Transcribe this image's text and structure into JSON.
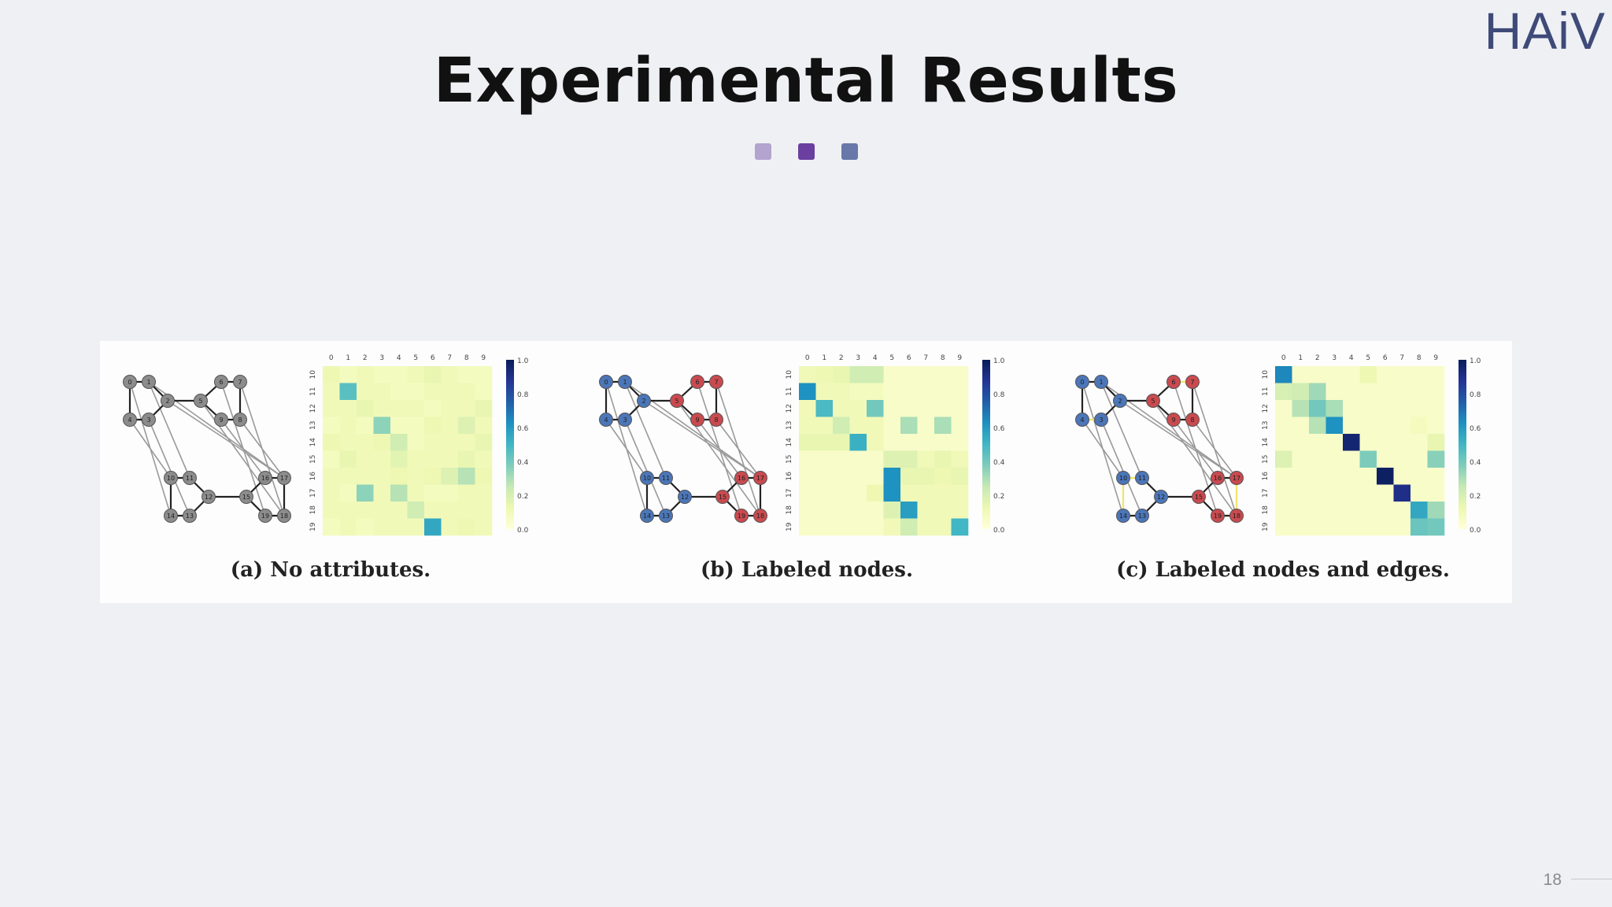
{
  "slide": {
    "logo": "HAiV",
    "title": "Experimental Results",
    "page_number": "18",
    "accent_dots": [
      "#b3a3cf",
      "#6b3fa0",
      "#6878a8"
    ]
  },
  "figure": {
    "panels": [
      {
        "caption": "(a) No attributes.",
        "heatmap": {
          "x_ticks": [
            "0",
            "1",
            "2",
            "3",
            "4",
            "5",
            "6",
            "7",
            "8",
            "9"
          ],
          "y_ticks": [
            "10",
            "11",
            "12",
            "13",
            "14",
            "15",
            "16",
            "17",
            "18",
            "19"
          ],
          "colorbar_ticks": [
            "1.0",
            "0.8",
            "0.6",
            "0.4",
            "0.2",
            "0.0"
          ],
          "values": [
            [
              0.12,
              0.08,
              0.1,
              0.08,
              0.08,
              0.1,
              0.14,
              0.1,
              0.08,
              0.08
            ],
            [
              0.1,
              0.45,
              0.1,
              0.1,
              0.08,
              0.08,
              0.1,
              0.1,
              0.1,
              0.08
            ],
            [
              0.1,
              0.1,
              0.14,
              0.1,
              0.1,
              0.1,
              0.08,
              0.1,
              0.1,
              0.14
            ],
            [
              0.08,
              0.1,
              0.08,
              0.35,
              0.08,
              0.08,
              0.12,
              0.1,
              0.18,
              0.1
            ],
            [
              0.12,
              0.1,
              0.1,
              0.12,
              0.22,
              0.08,
              0.1,
              0.1,
              0.1,
              0.14
            ],
            [
              0.08,
              0.14,
              0.1,
              0.1,
              0.16,
              0.1,
              0.1,
              0.1,
              0.14,
              0.1
            ],
            [
              0.1,
              0.1,
              0.1,
              0.1,
              0.12,
              0.1,
              0.12,
              0.18,
              0.28,
              0.12
            ],
            [
              0.1,
              0.08,
              0.35,
              0.1,
              0.28,
              0.1,
              0.08,
              0.08,
              0.1,
              0.1
            ],
            [
              0.1,
              0.1,
              0.1,
              0.1,
              0.1,
              0.22,
              0.1,
              0.1,
              0.1,
              0.1
            ],
            [
              0.08,
              0.1,
              0.08,
              0.1,
              0.1,
              0.1,
              0.55,
              0.1,
              0.12,
              0.1
            ]
          ]
        },
        "graph": {
          "scheme": "gray",
          "node_labels": [
            "0",
            "1",
            "2",
            "3",
            "4",
            "5",
            "6",
            "7",
            "8",
            "9",
            "10",
            "11",
            "12",
            "13",
            "14",
            "15",
            "16",
            "17",
            "18",
            "19"
          ]
        }
      },
      {
        "caption": "(b) Labeled nodes.",
        "heatmap": {
          "x_ticks": [
            "0",
            "1",
            "2",
            "3",
            "4",
            "5",
            "6",
            "7",
            "8",
            "9"
          ],
          "y_ticks": [
            "10",
            "11",
            "12",
            "13",
            "14",
            "15",
            "16",
            "17",
            "18",
            "19"
          ],
          "colorbar_ticks": [
            "1.0",
            "0.8",
            "0.6",
            "0.4",
            "0.2",
            "0.0"
          ],
          "values": [
            [
              0.1,
              0.12,
              0.14,
              0.22,
              0.22,
              0.05,
              0.05,
              0.05,
              0.05,
              0.05
            ],
            [
              0.62,
              0.1,
              0.1,
              0.08,
              0.08,
              0.05,
              0.05,
              0.05,
              0.05,
              0.05
            ],
            [
              0.1,
              0.48,
              0.1,
              0.1,
              0.4,
              0.05,
              0.05,
              0.05,
              0.05,
              0.05
            ],
            [
              0.1,
              0.1,
              0.22,
              0.1,
              0.1,
              0.05,
              0.3,
              0.05,
              0.3,
              0.05
            ],
            [
              0.14,
              0.14,
              0.14,
              0.52,
              0.1,
              0.05,
              0.05,
              0.05,
              0.05,
              0.05
            ],
            [
              0.05,
              0.05,
              0.05,
              0.05,
              0.05,
              0.18,
              0.18,
              0.1,
              0.14,
              0.1
            ],
            [
              0.05,
              0.05,
              0.05,
              0.05,
              0.05,
              0.62,
              0.14,
              0.14,
              0.12,
              0.14
            ],
            [
              0.05,
              0.05,
              0.05,
              0.05,
              0.12,
              0.62,
              0.1,
              0.1,
              0.1,
              0.1
            ],
            [
              0.05,
              0.05,
              0.05,
              0.05,
              0.05,
              0.18,
              0.58,
              0.1,
              0.1,
              0.1
            ],
            [
              0.05,
              0.05,
              0.05,
              0.05,
              0.05,
              0.1,
              0.22,
              0.1,
              0.1,
              0.5
            ]
          ]
        },
        "graph": {
          "scheme": "blue-red",
          "node_labels": [
            "0",
            "1",
            "2",
            "3",
            "4",
            "5",
            "6",
            "7",
            "8",
            "9",
            "10",
            "11",
            "12",
            "13",
            "14",
            "15",
            "16",
            "17",
            "18",
            "19"
          ]
        }
      },
      {
        "caption": "(c) Labeled nodes and edges.",
        "heatmap": {
          "x_ticks": [
            "0",
            "1",
            "2",
            "3",
            "4",
            "5",
            "6",
            "7",
            "8",
            "9"
          ],
          "y_ticks": [
            "10",
            "11",
            "12",
            "13",
            "14",
            "15",
            "16",
            "17",
            "18",
            "19"
          ],
          "colorbar_ticks": [
            "1.0",
            "0.8",
            "0.6",
            "0.4",
            "0.2",
            "0.0"
          ],
          "values": [
            [
              0.65,
              0.05,
              0.05,
              0.05,
              0.05,
              0.12,
              0.05,
              0.05,
              0.05,
              0.05
            ],
            [
              0.2,
              0.22,
              0.32,
              0.05,
              0.05,
              0.05,
              0.05,
              0.05,
              0.05,
              0.05
            ],
            [
              0.05,
              0.28,
              0.4,
              0.3,
              0.05,
              0.05,
              0.05,
              0.05,
              0.05,
              0.05
            ],
            [
              0.05,
              0.05,
              0.28,
              0.62,
              0.05,
              0.05,
              0.05,
              0.05,
              0.08,
              0.05
            ],
            [
              0.05,
              0.05,
              0.05,
              0.05,
              0.95,
              0.05,
              0.05,
              0.05,
              0.05,
              0.14
            ],
            [
              0.18,
              0.05,
              0.05,
              0.05,
              0.05,
              0.38,
              0.05,
              0.05,
              0.05,
              0.36
            ],
            [
              0.05,
              0.05,
              0.05,
              0.05,
              0.05,
              0.05,
              0.98,
              0.05,
              0.05,
              0.05
            ],
            [
              0.05,
              0.05,
              0.05,
              0.05,
              0.05,
              0.05,
              0.05,
              0.9,
              0.05,
              0.05
            ],
            [
              0.05,
              0.05,
              0.05,
              0.05,
              0.05,
              0.05,
              0.05,
              0.05,
              0.55,
              0.32
            ],
            [
              0.05,
              0.05,
              0.05,
              0.05,
              0.05,
              0.05,
              0.05,
              0.05,
              0.42,
              0.4
            ]
          ]
        },
        "graph": {
          "scheme": "blue-red-edges",
          "node_labels": [
            "0",
            "1",
            "2",
            "3",
            "4",
            "5",
            "6",
            "7",
            "8",
            "9",
            "10",
            "11",
            "12",
            "13",
            "14",
            "15",
            "16",
            "17",
            "18",
            "19"
          ]
        }
      }
    ]
  }
}
